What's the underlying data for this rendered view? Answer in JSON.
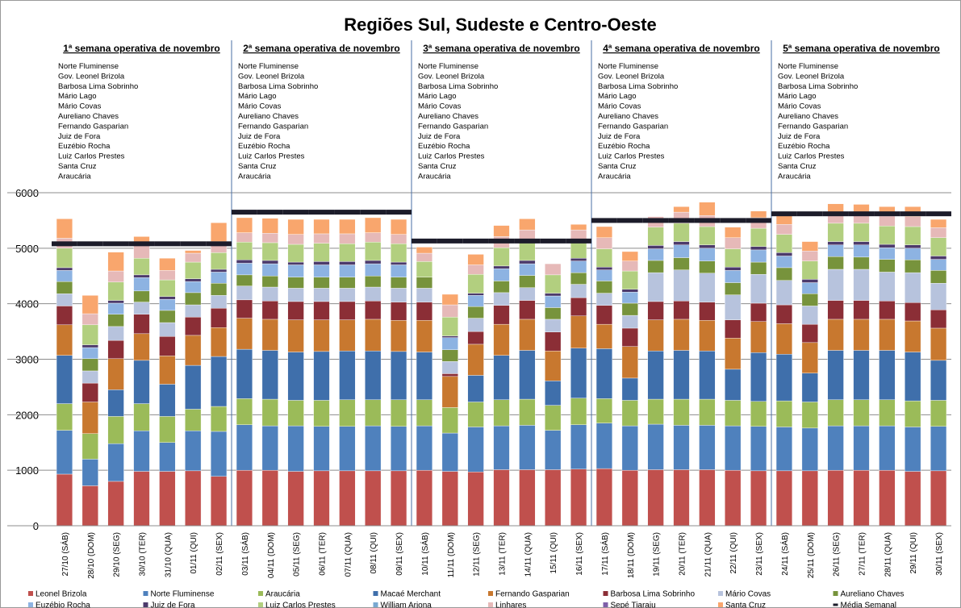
{
  "chart_data": {
    "type": "stacked_bar",
    "title": "Regiões Sul, Sudeste e Centro-Oeste",
    "weeks": [
      {
        "title": "1ª semana operativa de novembro",
        "plants": [
          "Norte Fluminense",
          "Gov. Leonel Brizola",
          "Barbosa Lima Sobrinho",
          "Mário Lago",
          "Mário Covas",
          "Aureliano Chaves",
          "Fernando Gasparian",
          "Juiz de Fora",
          "Euzébio Rocha",
          "Luiz Carlos Prestes",
          "Santa Cruz",
          "Araucária"
        ]
      },
      {
        "title": "2ª semana operativa de novembro",
        "plants": [
          "Norte Fluminense",
          "Gov. Leonel Brizola",
          "Barbosa Lima Sobrinho",
          "Mário Lago",
          "Mário Covas",
          "Aureliano Chaves",
          "Fernando Gasparian",
          "Juiz de Fora",
          "Euzébio Rocha",
          "Luiz Carlos Prestes",
          "Santa Cruz",
          "Araucária"
        ]
      },
      {
        "title": "3ª semana operativa de novembro",
        "plants": [
          "Norte Fluminense",
          "Gov. Leonel Brizola",
          "Barbosa Lima Sobrinho",
          "Mário Lago",
          "Mário Covas",
          "Aureliano Chaves",
          "Fernando Gasparian",
          "Juiz de Fora",
          "Euzébio Rocha",
          "Luiz Carlos Prestes",
          "Santa Cruz",
          "Araucária"
        ]
      },
      {
        "title": "4ª semana operativa de novembro",
        "plants": [
          "Norte Fluminense",
          "Gov. Leonel Brizola",
          "Barbosa Lima Sobrinho",
          "Mário Lago",
          "Mário Covas",
          "Aureliano Chaves",
          "Fernando Gasparian",
          "Juiz de Fora",
          "Euzébio Rocha",
          "Luiz Carlos Prestes",
          "Santa Cruz",
          "Araucária"
        ]
      },
      {
        "title": "5ª semana operativa de novembro",
        "plants": [
          "Norte Fluminense",
          "Gov. Leonel Brizola",
          "Barbosa Lima Sobrinho",
          "Mário Lago",
          "Mário Covas",
          "Aureliano Chaves",
          "Fernando Gasparian",
          "Juiz de Fora",
          "Euzébio Rocha",
          "Luiz Carlos Prestes",
          "Santa Cruz",
          "Araucária"
        ]
      }
    ],
    "categories": [
      "27/10 (SÁB)",
      "28/10 (DOM)",
      "29/10 (SEG)",
      "30/10 (TER)",
      "31/10 (QUA)",
      "01/11 (QUI)",
      "02/11 (SEX)",
      "03/11 (SÁB)",
      "04/11 (DOM)",
      "05/11 (SEG)",
      "06/11 (TER)",
      "07/11 (QUA)",
      "08/11 (QUI)",
      "09/11 (SEX)",
      "10/11 (SÁB)",
      "11/11 (DOM)",
      "12/11 (SEG)",
      "13/11 (TER)",
      "14/11 (QUA)",
      "15/11 (QUI)",
      "16/11 (SEX)",
      "17/11 (SÁB)",
      "18/11 (DOM)",
      "19/11 (SEG)",
      "20/11 (TER)",
      "21/11 (QUA)",
      "22/11 (QUI)",
      "23/11 (SEX)",
      "24/11 (SÁB)",
      "25/11 (DOM)",
      "26/11 (SEG)",
      "27/11 (TER)",
      "28/11 (QUA)",
      "29/11 (QUI)",
      "30/11 (SEX)"
    ],
    "ylim": [
      0,
      6000
    ],
    "yticks": [
      0,
      1000,
      2000,
      3000,
      4000,
      5000,
      6000
    ],
    "grid": true,
    "series": [
      {
        "name": "Leonel Brizola",
        "color": "#c0504d",
        "values": [
          930,
          720,
          800,
          980,
          980,
          990,
          890,
          1000,
          1000,
          980,
          990,
          990,
          990,
          990,
          1000,
          980,
          970,
          1010,
          1010,
          1010,
          1020,
          1030,
          1000,
          1010,
          1010,
          1010,
          1000,
          990,
          990,
          990,
          1000,
          1000,
          1000,
          980,
          990
        ]
      },
      {
        "name": "Norte Fluminense",
        "color": "#4f81bd",
        "values": [
          790,
          480,
          680,
          730,
          520,
          720,
          810,
          820,
          800,
          820,
          800,
          800,
          810,
          800,
          800,
          690,
          810,
          790,
          800,
          710,
          800,
          820,
          800,
          820,
          800,
          800,
          800,
          800,
          790,
          770,
          800,
          800,
          800,
          800,
          800
        ]
      },
      {
        "name": "Araucária",
        "color": "#9bbb59",
        "values": [
          480,
          460,
          490,
          490,
          470,
          390,
          450,
          470,
          480,
          460,
          470,
          480,
          470,
          480,
          470,
          460,
          450,
          470,
          470,
          450,
          480,
          440,
          460,
          450,
          470,
          470,
          460,
          450,
          470,
          470,
          470,
          470,
          470,
          470,
          470
        ]
      },
      {
        "name": "Macaé Merchant",
        "color": "#3f6fab",
        "values": [
          870,
          0,
          480,
          780,
          580,
          790,
          900,
          890,
          880,
          870,
          880,
          880,
          880,
          870,
          860,
          0,
          480,
          800,
          880,
          440,
          900,
          900,
          400,
          870,
          880,
          870,
          560,
          880,
          840,
          520,
          890,
          890,
          890,
          880,
          720
        ]
      },
      {
        "name": "Fernando Gasparian",
        "color": "#c8782f",
        "values": [
          550,
          570,
          560,
          480,
          510,
          540,
          520,
          560,
          560,
          580,
          570,
          560,
          570,
          560,
          570,
          560,
          560,
          560,
          560,
          540,
          580,
          440,
          570,
          560,
          560,
          550,
          560,
          560,
          550,
          550,
          560,
          560,
          560,
          560,
          580
        ]
      },
      {
        "name": "Barbosa Lima Sobrinho",
        "color": "#8b2e36",
        "values": [
          340,
          340,
          330,
          350,
          350,
          330,
          350,
          330,
          330,
          330,
          330,
          330,
          330,
          330,
          330,
          50,
          230,
          340,
          340,
          340,
          330,
          340,
          330,
          330,
          330,
          330,
          330,
          330,
          340,
          330,
          340,
          340,
          330,
          330,
          330
        ]
      },
      {
        "name": "Mário Covas",
        "color": "#b7c3dd",
        "values": [
          220,
          220,
          250,
          220,
          250,
          220,
          230,
          250,
          250,
          240,
          240,
          240,
          250,
          250,
          250,
          220,
          240,
          230,
          230,
          230,
          240,
          220,
          230,
          520,
          560,
          520,
          450,
          520,
          440,
          330,
          560,
          560,
          520,
          540,
          480
        ]
      },
      {
        "name": "Aureliano Chaves",
        "color": "#77933c",
        "values": [
          220,
          220,
          220,
          200,
          220,
          220,
          220,
          200,
          200,
          200,
          200,
          200,
          200,
          200,
          200,
          210,
          210,
          210,
          220,
          210,
          210,
          220,
          220,
          220,
          220,
          220,
          220,
          220,
          230,
          220,
          230,
          220,
          230,
          230,
          230
        ]
      },
      {
        "name": "Euzébio Rocha",
        "color": "#8db3e2",
        "values": [
          200,
          200,
          200,
          240,
          200,
          200,
          200,
          210,
          220,
          220,
          220,
          220,
          220,
          220,
          0,
          220,
          200,
          220,
          210,
          210,
          210,
          200,
          200,
          210,
          230,
          230,
          220,
          220,
          210,
          200,
          210,
          220,
          210,
          210,
          200
        ]
      },
      {
        "name": "Juiz de Fora",
        "color": "#4c3a6b",
        "values": [
          50,
          50,
          50,
          50,
          50,
          50,
          50,
          60,
          60,
          50,
          60,
          60,
          60,
          50,
          0,
          30,
          40,
          50,
          60,
          50,
          50,
          50,
          50,
          60,
          60,
          60,
          60,
          60,
          60,
          60,
          60,
          60,
          60,
          60,
          60
        ]
      },
      {
        "name": "Luiz Carlos Prestes",
        "color": "#b2cf7f",
        "values": [
          350,
          360,
          330,
          300,
          300,
          300,
          300,
          320,
          320,
          320,
          330,
          320,
          330,
          330,
          280,
          340,
          340,
          330,
          330,
          330,
          320,
          330,
          330,
          330,
          330,
          330,
          330,
          330,
          330,
          330,
          330,
          330,
          330,
          330,
          330
        ]
      },
      {
        "name": "William Arjona",
        "color": "#78a8d0",
        "values": [
          0,
          0,
          0,
          0,
          0,
          0,
          0,
          0,
          0,
          0,
          0,
          0,
          0,
          0,
          0,
          0,
          0,
          0,
          0,
          0,
          0,
          0,
          0,
          0,
          0,
          0,
          0,
          0,
          0,
          0,
          0,
          0,
          0,
          0,
          0
        ]
      },
      {
        "name": "Linhares",
        "color": "#e6b9b8",
        "values": [
          180,
          200,
          200,
          230,
          170,
          160,
          200,
          170,
          170,
          180,
          170,
          180,
          170,
          170,
          150,
          220,
          170,
          200,
          220,
          200,
          190,
          200,
          180,
          190,
          200,
          200,
          200,
          190,
          180,
          180,
          170,
          170,
          180,
          180,
          180
        ]
      },
      {
        "name": "Sepé Tiaraju",
        "color": "#7e5fa8",
        "values": [
          0,
          0,
          0,
          0,
          0,
          0,
          0,
          0,
          0,
          0,
          0,
          0,
          0,
          0,
          0,
          0,
          0,
          0,
          0,
          0,
          0,
          0,
          0,
          0,
          0,
          0,
          0,
          0,
          0,
          0,
          0,
          0,
          0,
          0,
          0
        ]
      },
      {
        "name": "Santa Cruz",
        "color": "#f9a66d",
        "values": [
          350,
          330,
          340,
          160,
          220,
          50,
          340,
          270,
          270,
          270,
          260,
          260,
          270,
          270,
          110,
          190,
          190,
          200,
          200,
          0,
          100,
          200,
          170,
          0,
          100,
          240,
          190,
          120,
          220,
          170,
          180,
          170,
          170,
          180,
          150
        ]
      },
      {
        "name": "Média Semanal",
        "type": "marker",
        "color": "#1c1c2a",
        "values": [
          5080,
          5080,
          5080,
          5080,
          5080,
          5080,
          5080,
          5650,
          5650,
          5650,
          5650,
          5650,
          5650,
          5650,
          5130,
          5130,
          5130,
          5130,
          5130,
          5130,
          5130,
          5500,
          5500,
          5500,
          5500,
          5500,
          5500,
          5500,
          5620,
          5620,
          5620,
          5620,
          5620,
          5620,
          5620
        ]
      }
    ]
  }
}
